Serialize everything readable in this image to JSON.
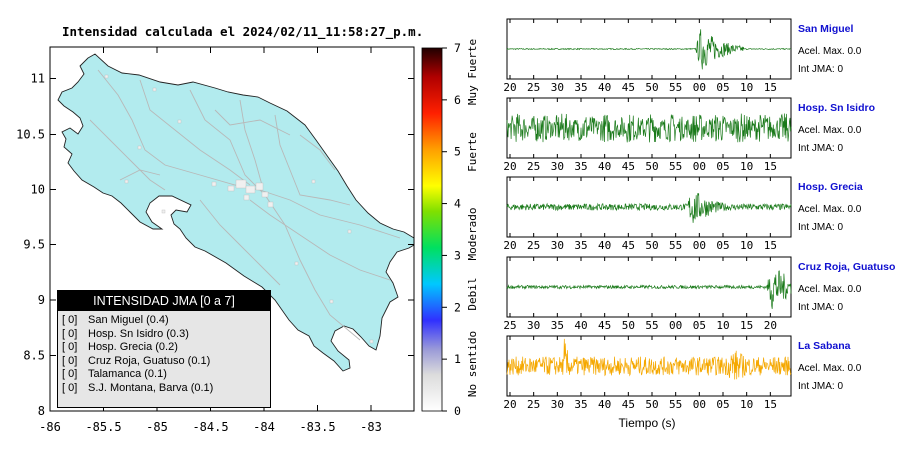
{
  "map": {
    "title": "Intensidad calculada el 2024/02/11_11:58:27_p.m.",
    "x_ticks": [
      "-86",
      "-85.5",
      "-85",
      "-84.5",
      "-84",
      "-83.5",
      "-83"
    ],
    "y_ticks": [
      "11",
      "10.5",
      "10",
      "9.5",
      "9",
      "8.5",
      "8"
    ]
  },
  "colorbar": {
    "ticks": [
      "0",
      "1",
      "2",
      "3",
      "4",
      "5",
      "6",
      "7"
    ],
    "categories": [
      "No sentido",
      "Debil",
      "Moderado",
      "Fuerte",
      "Muy Fuerte"
    ]
  },
  "legend": {
    "title": "INTENSIDAD JMA [0 a 7]",
    "items": [
      {
        "value": "[ 0]",
        "label": "San Miguel (0.4)"
      },
      {
        "value": "[ 0]",
        "label": "Hosp. Sn Isidro (0.3)"
      },
      {
        "value": "[ 0]",
        "label": "Hosp. Grecia (0.2)"
      },
      {
        "value": "[ 0]",
        "label": "Cruz Roja, Guatuso (0.1)"
      },
      {
        "value": "[ 0]",
        "label": "Talamanca (0.1)"
      },
      {
        "value": "[ 0]",
        "label": "S.J. Montana, Barva (0.1)"
      }
    ]
  },
  "colors": {
    "land": "#b2ebee",
    "trace_green": "#1a7a1a",
    "trace_orange": "#f5a800",
    "station_label": "#1010d0"
  },
  "waveforms": {
    "xlabel": "Tiempo (s)",
    "panels": [
      {
        "station": "San Miguel",
        "accel_label": "Acel. Max. 0.0",
        "int_label": "Int JMA: 0",
        "ticks": [
          "20",
          "25",
          "30",
          "35",
          "40",
          "45",
          "50",
          "55",
          "00",
          "05",
          "10",
          "15"
        ],
        "color_key": "green"
      },
      {
        "station": "Hosp. Sn Isidro",
        "accel_label": "Acel. Max. 0.0",
        "int_label": "Int JMA: 0",
        "ticks": [
          "20",
          "25",
          "30",
          "35",
          "40",
          "45",
          "50",
          "55",
          "00",
          "05",
          "10",
          "15"
        ],
        "color_key": "green"
      },
      {
        "station": "Hosp. Grecia",
        "accel_label": "Acel. Max. 0.0",
        "int_label": "Int JMA: 0",
        "ticks": [
          "20",
          "25",
          "30",
          "35",
          "40",
          "45",
          "50",
          "55",
          "00",
          "05",
          "10",
          "15"
        ],
        "color_key": "green"
      },
      {
        "station": "Cruz Roja, Guatuso",
        "accel_label": "Acel. Max. 0.0",
        "int_label": "Int JMA: 0",
        "ticks": [
          "25",
          "30",
          "35",
          "40",
          "45",
          "50",
          "55",
          "00",
          "05",
          "10",
          "15",
          "20"
        ],
        "color_key": "green"
      },
      {
        "station": "La Sabana",
        "accel_label": "Acel. Max. 0.0",
        "int_label": "Int JMA: 0",
        "ticks": [
          "20",
          "25",
          "30",
          "35",
          "40",
          "45",
          "50",
          "55",
          "00",
          "05",
          "10",
          "15"
        ],
        "color_key": "orange"
      }
    ]
  },
  "chart_data": [
    {
      "type": "heatmap",
      "title": "Intensidad calculada el 2024/02/11_11:58:27_p.m.",
      "xlim": [
        -86,
        -82.6
      ],
      "ylim": [
        8,
        11.3
      ],
      "colorbar_range": [
        0,
        7
      ],
      "colorbar_labels": [
        "No sentido",
        "Debil",
        "Moderado",
        "Fuerte",
        "Muy Fuerte"
      ]
    },
    {
      "type": "line",
      "xlabel": "Tiempo (s)",
      "series": [
        {
          "name": "San Miguel",
          "burst_at_tick_index": 8.2,
          "burst_amp": 0.85,
          "noise": 0.02
        },
        {
          "name": "Hosp. Sn Isidro",
          "burst_at_tick_index": 4.5,
          "burst_amp": 0.8,
          "noise": 0.55
        },
        {
          "name": "Hosp. Grecia",
          "burst_at_tick_index": 7.8,
          "burst_amp": 0.75,
          "noise": 0.12
        },
        {
          "name": "Cruz Roja, Guatuso",
          "burst_at_tick_index": 11.2,
          "burst_amp": 0.9,
          "noise": 0.06
        },
        {
          "name": "La Sabana",
          "burst_at_tick_index": 9.5,
          "burst_amp": 0.75,
          "noise": 0.35
        }
      ]
    }
  ]
}
